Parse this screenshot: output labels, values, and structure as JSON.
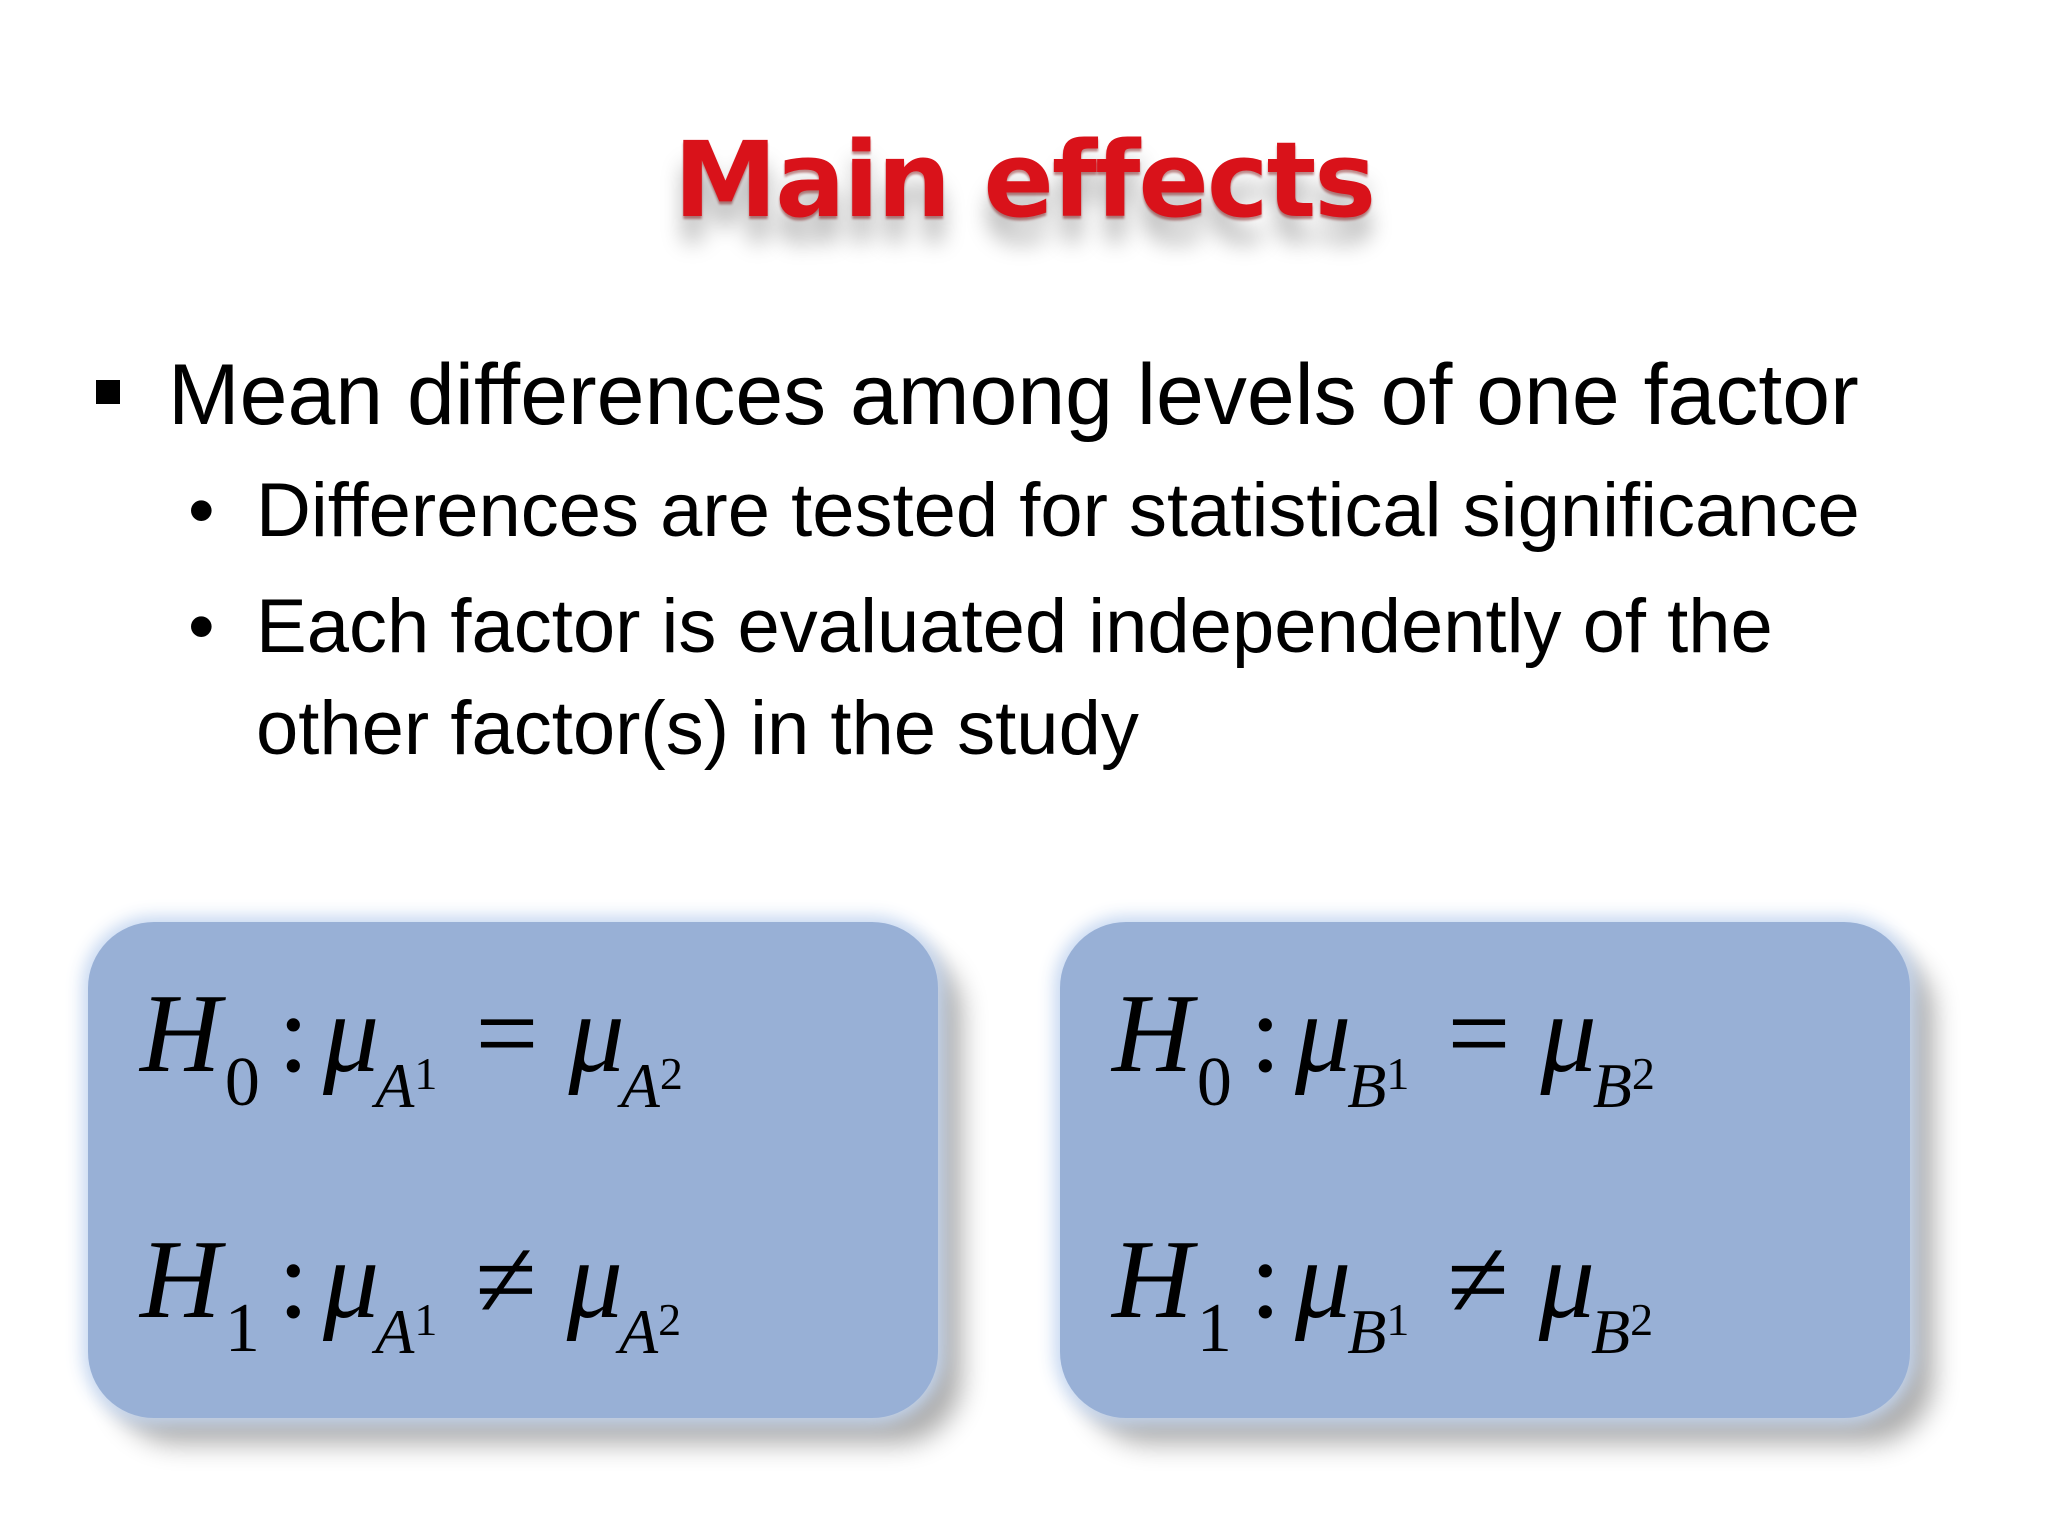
{
  "slide": {
    "title": "Main effects",
    "bullet": "Mean differences among levels of one factor",
    "subbullets": [
      "Differences are tested for statistical significance",
      "Each factor is evaluated independently of the",
      "other factor(s) in the study"
    ],
    "sub_bullet_marker": "•"
  },
  "hypotheses": {
    "left": {
      "h0": {
        "H": "H",
        "idx": "0",
        "colon": ":",
        "mu": "μ",
        "f1": "A",
        "n1": "1",
        "op": "=",
        "mu2": "μ",
        "f2": "A",
        "n2": "2"
      },
      "h1": {
        "H": "H",
        "idx": "1",
        "colon": ":",
        "mu": "μ",
        "f1": "A",
        "n1": "1",
        "op": "≠",
        "mu2": "μ",
        "f2": "A",
        "n2": "2"
      }
    },
    "right": {
      "h0": {
        "H": "H",
        "idx": "0",
        "colon": ":",
        "mu": "μ",
        "f1": "B",
        "n1": "1",
        "op": "=",
        "mu2": "μ",
        "f2": "B",
        "n2": "2"
      },
      "h1": {
        "H": "H",
        "idx": "1",
        "colon": ":",
        "mu": "μ",
        "f1": "B",
        "n1": "1",
        "op": "≠",
        "mu2": "μ",
        "f2": "B",
        "n2": "2"
      }
    }
  },
  "colors": {
    "title": "#d9121a",
    "box_fill": "#98b0d6",
    "text": "#000000"
  }
}
